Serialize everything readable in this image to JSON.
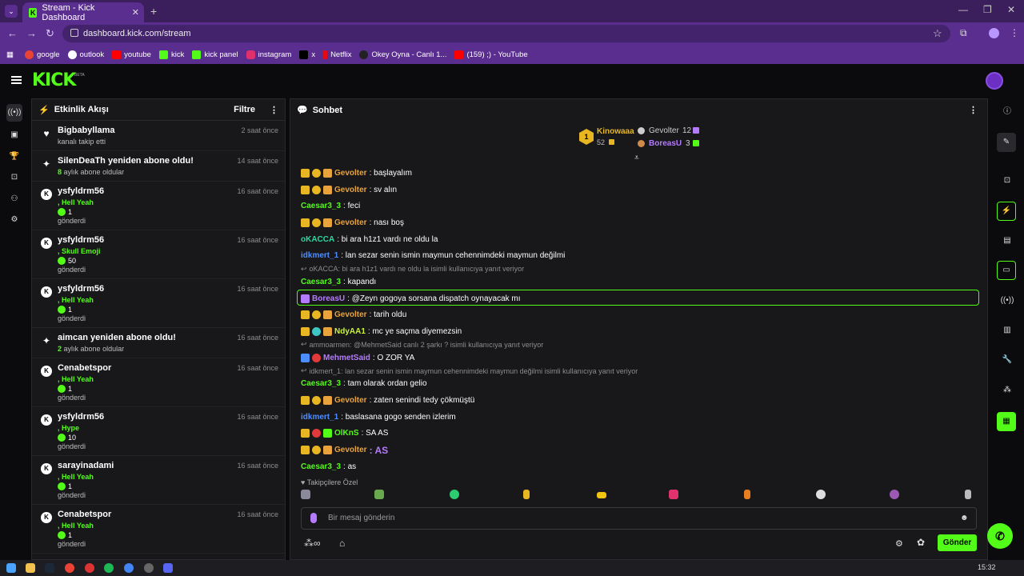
{
  "browser": {
    "tab_title": "Stream - Kick Dashboard",
    "url": "dashboard.kick.com/stream",
    "bookmarks": [
      {
        "label": "google",
        "color": "#ea4335"
      },
      {
        "label": "outlook",
        "color": "#ffffff"
      },
      {
        "label": "youtube",
        "color": "#ff0000"
      },
      {
        "label": "kick",
        "color": "#53fc18"
      },
      {
        "label": "kick panel",
        "color": "#53fc18"
      },
      {
        "label": "instagram",
        "color": "#e1306c"
      },
      {
        "label": "x",
        "color": "#000000"
      },
      {
        "label": "Netflix",
        "color": "#e50914"
      },
      {
        "label": "Okey Oyna - Canlı 1...",
        "color": "#222222"
      },
      {
        "label": "(159) ;) - YouTube",
        "color": "#ff0000"
      }
    ]
  },
  "activity": {
    "title": "Etkinlik Akışı",
    "filter_label": "Filtre",
    "events": [
      {
        "type": "follow",
        "name": "Bigbabyllama",
        "time": "2 saat önce",
        "text": "kanalı takip etti"
      },
      {
        "type": "sub",
        "name": "SilenDeaTh yeniden abone oldu!",
        "time": "14 saat önce",
        "months": "8",
        "text": "aylık abone oldular"
      },
      {
        "type": "kicks",
        "name": "ysfyldrm56",
        "time": "16 saat önce",
        "gift": ", Hell Yeah",
        "amount": "1",
        "text": "gönderdi"
      },
      {
        "type": "kicks",
        "name": "ysfyldrm56",
        "time": "16 saat önce",
        "gift": ", Skull Emoji",
        "amount": "50",
        "text": "gönderdi"
      },
      {
        "type": "kicks",
        "name": "ysfyldrm56",
        "time": "16 saat önce",
        "gift": ", Hell Yeah",
        "amount": "1",
        "text": "gönderdi"
      },
      {
        "type": "sub",
        "name": "aimcan yeniden abone oldu!",
        "time": "16 saat önce",
        "months": "2",
        "text": "aylık abone oldular"
      },
      {
        "type": "kicks",
        "name": "Cenabetspor",
        "time": "16 saat önce",
        "gift": ", Hell Yeah",
        "amount": "1",
        "text": "gönderdi"
      },
      {
        "type": "kicks",
        "name": "ysfyldrm56",
        "time": "16 saat önce",
        "gift": ", Hype",
        "amount": "10",
        "text": "gönderdi"
      },
      {
        "type": "kicks",
        "name": "sarayinadami",
        "time": "16 saat önce",
        "gift": ", Hell Yeah",
        "amount": "1",
        "text": "gönderdi"
      },
      {
        "type": "kicks",
        "name": "Cenabetspor",
        "time": "16 saat önce",
        "gift": ", Hell Yeah",
        "amount": "1",
        "text": "gönderdi"
      },
      {
        "type": "kicks",
        "name": "ysfyldrm56",
        "time": "16 saat önce",
        "gift": "",
        "amount": "",
        "text": ""
      }
    ]
  },
  "chat": {
    "title": "Sohbet",
    "leaderboard": {
      "first": {
        "rank": "1",
        "name": "Kinowaaa",
        "value": "52"
      },
      "second": {
        "name": "Gevolter",
        "value": "12"
      },
      "third": {
        "name": "BoreasU",
        "value": "3"
      }
    },
    "messages": [
      {
        "user": "Gevolter",
        "color": "#e8a33d",
        "badges": [
          "#e8b622",
          "#e8b622",
          "#e8a33d"
        ],
        "text": ": başlayalım"
      },
      {
        "user": "Gevolter",
        "color": "#e8a33d",
        "badges": [
          "#e8b622",
          "#e8b622",
          "#e8a33d"
        ],
        "text": ": sv alın"
      },
      {
        "user": "Caesar3_3",
        "color": "#53fc18",
        "badges": [],
        "text": ": feci"
      },
      {
        "user": "Gevolter",
        "color": "#e8a33d",
        "badges": [
          "#e8b622",
          "#e8b622",
          "#e8a33d"
        ],
        "text": ": nası boş"
      },
      {
        "user": "oKACCA",
        "color": "#2bd9a0",
        "badges": [],
        "text": ": bi ara h1z1 vardı ne oldu la"
      },
      {
        "user": "idkmert_1",
        "color": "#4c8dff",
        "badges": [],
        "text": ": lan sezar senin ismin maymun cehennimdeki maymun değilmi"
      },
      {
        "reply": "oKACCA: bi ara h1z1 vardı ne oldu la isimli kullanıcıya yanıt veriyor",
        "user": "Caesar3_3",
        "color": "#53fc18",
        "badges": [],
        "text": ": kapandı"
      },
      {
        "user": "BoreasU",
        "color": "#b57bff",
        "badges": [
          "#b57bff"
        ],
        "text": ": @Zeyn gogoya sorsana dispatch oynayacak mı",
        "highlight": true
      },
      {
        "user": "Gevolter",
        "color": "#e8a33d",
        "badges": [
          "#e8b622",
          "#e8b622",
          "#e8a33d"
        ],
        "text": ": tarih oldu"
      },
      {
        "user": "NdyAA1",
        "color": "#c8f23a",
        "badges": [
          "#e8b622",
          "#3ec7c2",
          "#e8a33d"
        ],
        "text": ": mc ye saçma diyemezsin"
      },
      {
        "reply": "ammoarmen: @MehmetSaid canlı 2 şarkı ? isimli kullanıcıya yanıt veriyor",
        "user": "MehmetSaid",
        "color": "#b57bff",
        "badges": [
          "#4c8dff",
          "#e03a3a"
        ],
        "text": ": O ZOR YA"
      },
      {
        "reply": "idkmert_1: lan sezar senin ismin maymun cehennimdeki maymun değilmi isimli kullanıcıya yanıt veriyor",
        "user": "Caesar3_3",
        "color": "#53fc18",
        "badges": [],
        "text": ": tam olarak ordan gelio"
      },
      {
        "user": "Gevolter",
        "color": "#e8a33d",
        "badges": [
          "#e8b622",
          "#e8b622",
          "#e8a33d"
        ],
        "text": ": zaten senindi tedy çökmüştü"
      },
      {
        "user": "idkmert_1",
        "color": "#4c8dff",
        "badges": [],
        "text": ": baslasana gogo senden izlerim"
      },
      {
        "user": "OlKnS",
        "color": "#53fc18",
        "badges": [
          "#e8b622",
          "#e03a3a",
          "#53fc18"
        ],
        "text": ": SA AS"
      },
      {
        "user": "Gevolter",
        "color": "#e8a33d",
        "badges": [
          "#e8b622",
          "#e8b622",
          "#e8a33d"
        ],
        "text": ": AS",
        "emote": true
      },
      {
        "user": "Caesar3_3",
        "color": "#53fc18",
        "badges": [],
        "text": ": as"
      }
    ],
    "followers_only_label": "Takipçilere Özel",
    "input_placeholder": "Bir mesaj gönderin",
    "send_label": "Gönder"
  },
  "taskbar": {
    "time": "15:32"
  },
  "colors": {
    "accent": "#53fc18",
    "panel": "#18181b",
    "bg": "#0b0b0d",
    "browser": "#5a2e8f"
  }
}
